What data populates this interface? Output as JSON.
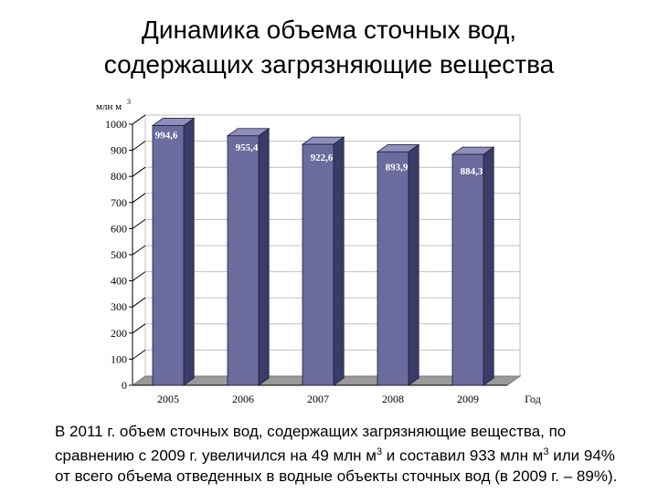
{
  "slide": {
    "title_line1": "Динамика объема сточных вод,",
    "title_line2": "содержащих загрязняющие вещества",
    "note_line1": "В 2011 г. объем сточных вод, содержащих загрязняющие вещества, по",
    "note_line2_a": "сравнению с 2009 г. увеличился на 49 млн м",
    "note_line2_sup1": "3",
    "note_line2_b": " и составил 933 млн м",
    "note_line2_sup2": "3",
    "note_line2_c": " или 94%",
    "note_line3": "от всего объема отведенных в водные объекты сточных вод (в 2009 г. – 89%)."
  },
  "chart_data": {
    "type": "bar",
    "categories": [
      "2005",
      "2006",
      "2007",
      "2008",
      "2009"
    ],
    "values": [
      994.6,
      955.4,
      922.6,
      893.9,
      884.3
    ],
    "value_labels": [
      "994,6",
      "955,4",
      "922,6",
      "893,9",
      "884,3"
    ],
    "ylabel": "млн м",
    "ylabel_sup": "3",
    "xlabel": "Год",
    "ylim": [
      0,
      1000
    ],
    "yticks": [
      "0",
      "100",
      "200",
      "300",
      "400",
      "500",
      "600",
      "700",
      "800",
      "900",
      "1000"
    ],
    "grid": true,
    "colors": {
      "bar_front": "#6b6b9e",
      "bar_side": "#3b3b68",
      "bar_top": "#8e8ebc",
      "floor": "#9a9a9a",
      "grid": "#bfbfbf"
    }
  }
}
